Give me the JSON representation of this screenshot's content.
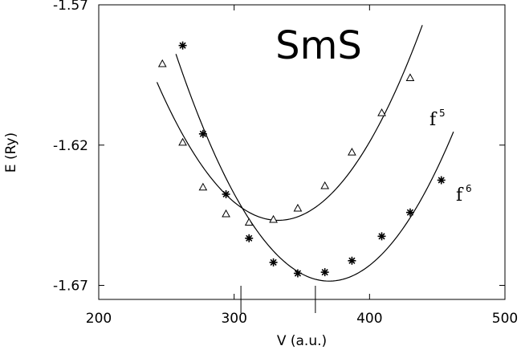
{
  "chart_data": {
    "type": "scatter",
    "title": "SmS",
    "xlabel": "V (a.u.)",
    "ylabel": "E (Ry)",
    "xlim": [
      200,
      500
    ],
    "ylim": [
      -1.675,
      -1.57
    ],
    "x_ticks": [
      {
        "value": 200,
        "label": "200"
      },
      {
        "value": 300,
        "label": "300"
      },
      {
        "value": 400,
        "label": "400"
      },
      {
        "value": 500,
        "label": "500"
      }
    ],
    "y_ticks": [
      {
        "value": -1.57,
        "label": "-1.57"
      },
      {
        "value": -1.62,
        "label": "-1.62"
      },
      {
        "value": -1.67,
        "label": "-1.67"
      }
    ],
    "minima_markers_x": [
      305,
      360
    ],
    "grid": false,
    "series": [
      {
        "name": "f",
        "superscript": "5",
        "marker": "triangle",
        "points": [
          [
            247,
            -1.591
          ],
          [
            262,
            -1.619
          ],
          [
            277,
            -1.635
          ],
          [
            294,
            -1.6445
          ],
          [
            311,
            -1.6475
          ],
          [
            329,
            -1.6465
          ],
          [
            347,
            -1.6425
          ],
          [
            367,
            -1.6345
          ],
          [
            387,
            -1.6225
          ],
          [
            409,
            -1.6085
          ],
          [
            430,
            -1.596
          ]
        ],
        "curve_x_range": [
          243,
          439
        ]
      },
      {
        "name": "f",
        "superscript": "6",
        "marker": "asterisk",
        "points": [
          [
            262,
            -1.5845
          ],
          [
            277,
            -1.616
          ],
          [
            294,
            -1.6375
          ],
          [
            311,
            -1.6532
          ],
          [
            329,
            -1.6618
          ],
          [
            347,
            -1.6657
          ],
          [
            367,
            -1.6653
          ],
          [
            387,
            -1.6612
          ],
          [
            409,
            -1.6525
          ],
          [
            430,
            -1.644
          ],
          [
            453,
            -1.6325
          ]
        ],
        "curve_x_range": [
          257,
          462
        ]
      }
    ]
  }
}
